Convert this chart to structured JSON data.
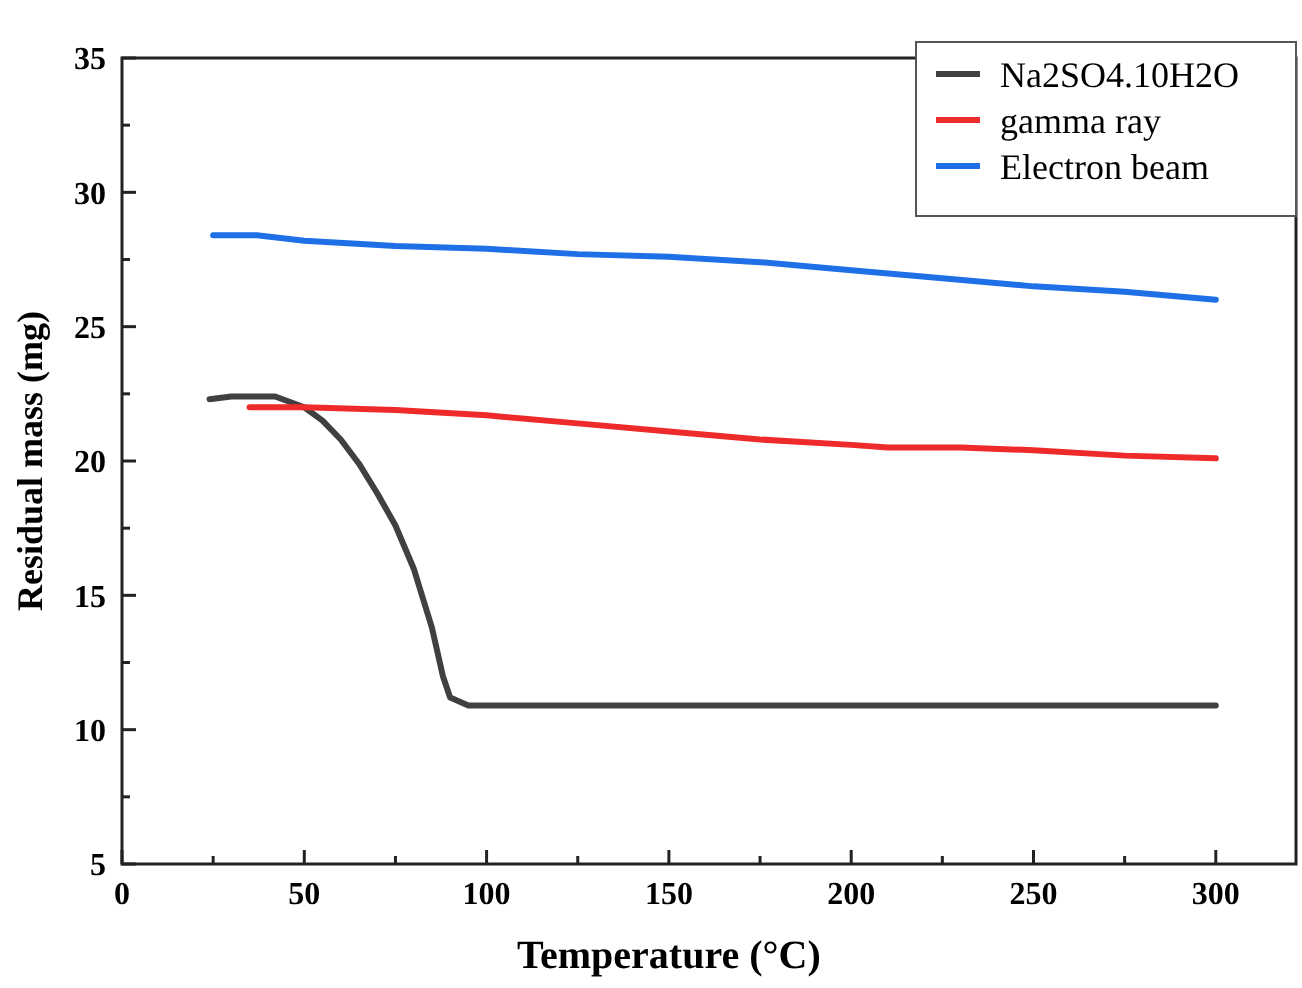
{
  "chart_data": {
    "type": "line",
    "xlabel": "Temperature (°C)",
    "ylabel": "Residual mass (mg)",
    "xlim": [
      0,
      322
    ],
    "xticks": [
      0,
      {
        "value": 25,
        "label": null
      },
      50,
      {
        "value": 75,
        "label": null
      },
      100,
      {
        "value": 125,
        "label": null
      },
      150,
      {
        "value": 175,
        "label": null
      },
      200,
      {
        "value": 225,
        "label": null
      },
      250,
      {
        "value": 275,
        "label": null
      },
      300
    ],
    "ylim": [
      5,
      35
    ],
    "yticks": [
      5,
      {
        "value": 7.5,
        "label": null
      },
      10,
      {
        "value": 12.5,
        "label": null
      },
      15,
      {
        "value": 17.5,
        "label": null
      },
      20,
      {
        "value": 22.5,
        "label": null
      },
      25,
      {
        "value": 27.5,
        "label": null
      },
      30,
      {
        "value": 32.5,
        "label": null
      },
      35
    ],
    "legend": "top right",
    "grid": false,
    "marker": "none",
    "line_style": "solid",
    "series": [
      {
        "name": "Na2SO4.10H2O",
        "color": "#404040",
        "x": [
          24,
          30,
          42,
          50,
          55,
          60,
          65,
          70,
          75,
          80,
          85,
          88,
          90,
          95,
          150,
          200,
          250,
          300
        ],
        "values": [
          22.3,
          22.4,
          22.4,
          22.0,
          21.5,
          20.8,
          19.9,
          18.8,
          17.6,
          16.0,
          13.8,
          12.0,
          11.2,
          10.9,
          10.9,
          10.9,
          10.9,
          10.9
        ]
      },
      {
        "name": "gamma ray",
        "color": "#ee2a2a",
        "x": [
          35,
          50,
          75,
          100,
          125,
          150,
          175,
          200,
          210,
          230,
          250,
          275,
          300
        ],
        "values": [
          22.0,
          22.0,
          21.9,
          21.7,
          21.4,
          21.1,
          20.8,
          20.6,
          20.5,
          20.5,
          20.4,
          20.2,
          20.1
        ]
      },
      {
        "name": "Electron beam",
        "color": "#1f6fe6",
        "x": [
          25,
          37,
          50,
          75,
          100,
          125,
          150,
          175,
          200,
          225,
          250,
          275,
          300
        ],
        "values": [
          28.4,
          28.4,
          28.2,
          28.0,
          27.9,
          27.7,
          27.6,
          27.4,
          27.1,
          26.8,
          26.5,
          26.3,
          26.0
        ]
      }
    ]
  }
}
